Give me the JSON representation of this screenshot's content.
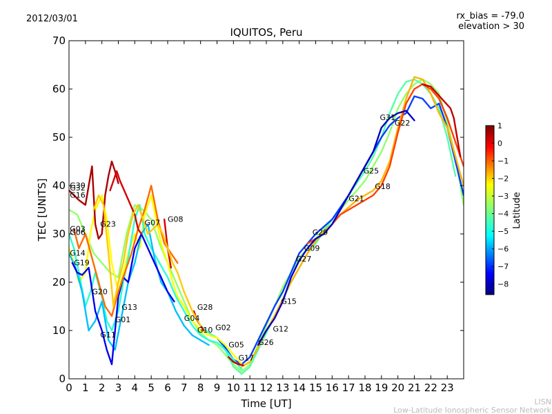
{
  "header": {
    "date": "2012/03/01",
    "rx_bias": "rx_bias = -79.0",
    "elevation": "elevation > 30"
  },
  "footer": {
    "org_short": "LISN",
    "org_full": "Low-Latitude Ionospheric Sensor Network"
  },
  "chart_data": {
    "type": "scatter",
    "title": "IQUITOS, Peru",
    "xlabel": "Time [UT]",
    "ylabel": "TEC [UNITS]",
    "xlim": [
      0,
      24
    ],
    "ylim": [
      0,
      70
    ],
    "xticks": [
      "0",
      "1",
      "2",
      "3",
      "4",
      "5",
      "6",
      "7",
      "8",
      "9",
      "10",
      "11",
      "12",
      "13",
      "14",
      "15",
      "16",
      "17",
      "18",
      "19",
      "20",
      "21",
      "22",
      "23"
    ],
    "yticks": [
      "0",
      "10",
      "20",
      "30",
      "40",
      "50",
      "60",
      "70"
    ],
    "colorbar": {
      "label": "Latitude",
      "min": -8.6,
      "max": 1.0,
      "ticks": [
        "1",
        "0",
        "−1",
        "−2",
        "−3",
        "−4",
        "−5",
        "−6",
        "−7",
        "−8"
      ],
      "colors": [
        "#00007f",
        "#0000ff",
        "#007fff",
        "#00ffff",
        "#7fff7f",
        "#ffff00",
        "#ff7f00",
        "#ff0000",
        "#7f0000"
      ]
    },
    "satellite_labels": [
      {
        "name": "G30",
        "x": 0.05,
        "y": 39.5
      },
      {
        "name": "G32",
        "x": 0.05,
        "y": 39.0
      },
      {
        "name": "G16",
        "x": 0.05,
        "y": 37.5
      },
      {
        "name": "G03",
        "x": 0.05,
        "y": 30.5
      },
      {
        "name": "G06",
        "x": 0.05,
        "y": 29.8
      },
      {
        "name": "G14",
        "x": 0.05,
        "y": 25.5
      },
      {
        "name": "G19",
        "x": 0.3,
        "y": 23.5
      },
      {
        "name": "G23",
        "x": 1.9,
        "y": 31.5
      },
      {
        "name": "G20",
        "x": 1.4,
        "y": 17.5
      },
      {
        "name": "G13",
        "x": 3.2,
        "y": 14.3
      },
      {
        "name": "G01",
        "x": 2.8,
        "y": 11.7
      },
      {
        "name": "G11",
        "x": 1.9,
        "y": 8.6
      },
      {
        "name": "G07",
        "x": 4.6,
        "y": 31.8
      },
      {
        "name": "G08",
        "x": 6.0,
        "y": 32.5
      },
      {
        "name": "G04",
        "x": 7.0,
        "y": 12.0
      },
      {
        "name": "G28",
        "x": 7.8,
        "y": 14.3
      },
      {
        "name": "G10",
        "x": 7.8,
        "y": 9.6
      },
      {
        "name": "G02",
        "x": 8.9,
        "y": 10.1
      },
      {
        "name": "G05",
        "x": 9.7,
        "y": 6.5
      },
      {
        "name": "G17",
        "x": 10.3,
        "y": 3.8
      },
      {
        "name": "G26",
        "x": 11.5,
        "y": 7.0
      },
      {
        "name": "G12",
        "x": 12.4,
        "y": 9.8
      },
      {
        "name": "G15",
        "x": 12.9,
        "y": 15.5
      },
      {
        "name": "G27",
        "x": 13.8,
        "y": 24.3
      },
      {
        "name": "G09",
        "x": 14.3,
        "y": 26.5
      },
      {
        "name": "G29",
        "x": 14.8,
        "y": 29.8
      },
      {
        "name": "G21",
        "x": 17.0,
        "y": 36.8
      },
      {
        "name": "G25",
        "x": 17.9,
        "y": 42.5
      },
      {
        "name": "G18",
        "x": 18.6,
        "y": 39.3
      },
      {
        "name": "G31",
        "x": 18.9,
        "y": 53.6
      },
      {
        "name": "G22",
        "x": 19.8,
        "y": 52.4
      }
    ],
    "series": [
      {
        "name": "day-green-1",
        "lat": -3.6,
        "x": [
          0,
          0.5,
          1,
          1.5,
          2,
          2.5,
          3,
          3.5,
          4,
          4.5,
          5,
          5.5,
          6,
          6.5,
          7,
          7.5,
          8,
          8.5,
          9,
          9.5,
          10,
          10.5,
          11,
          11.5,
          12,
          12.5,
          13,
          13.5,
          14,
          14.5,
          15,
          15.5,
          16,
          16.5,
          17,
          17.5,
          18,
          18.5,
          19,
          19.5,
          20,
          20.5,
          21,
          21.5,
          22,
          22.5,
          23,
          23.5,
          24
        ],
        "y": [
          35,
          34,
          30,
          26,
          24,
          22,
          21,
          30,
          36,
          35,
          33,
          28,
          24,
          20,
          16,
          12,
          9.5,
          8,
          7,
          5,
          3,
          1.5,
          3,
          7,
          11,
          15,
          19,
          22,
          25,
          27,
          29,
          31,
          33,
          35,
          37,
          39,
          41,
          44,
          47,
          51,
          56,
          59,
          61,
          62,
          61,
          59,
          53,
          46,
          36
        ]
      },
      {
        "name": "day-green-2",
        "lat": -4.2,
        "x": [
          8,
          8.5,
          9,
          9.5,
          10,
          10.5,
          11,
          11.5,
          12,
          12.5,
          13,
          13.5,
          14,
          14.5,
          15,
          15.5,
          16,
          16.5,
          17,
          17.5,
          18,
          18.5,
          19,
          19.5,
          20,
          20.5,
          21,
          21.5,
          22,
          22.5,
          23,
          23.5
        ],
        "y": [
          11,
          9.5,
          8.5,
          6,
          2.5,
          1,
          2.5,
          6,
          9.5,
          13,
          16.5,
          20,
          23,
          26,
          28,
          30.5,
          33,
          35.5,
          38,
          40.5,
          43,
          46,
          50,
          55,
          59,
          61.5,
          62,
          61,
          59,
          56,
          50,
          42
        ]
      },
      {
        "name": "day-cyan",
        "lat": -6.8,
        "x": [
          9,
          9.5,
          10,
          10.5,
          11,
          11.5,
          12,
          12.5,
          13,
          13.5,
          14,
          14.5,
          15,
          15.5,
          16,
          16.5,
          17,
          17.5,
          18,
          18.5,
          19,
          19.5,
          20,
          20.5,
          21,
          21.5,
          22,
          22.5,
          23,
          23.5,
          24
        ],
        "y": [
          8.5,
          6.5,
          4,
          3,
          4.5,
          8,
          11.5,
          15,
          18,
          22,
          26,
          28,
          30,
          31.5,
          33,
          35.5,
          38,
          41,
          44,
          47,
          50,
          52.5,
          54,
          55,
          58.5,
          58,
          56,
          57,
          52,
          45,
          38
        ]
      },
      {
        "name": "day-yellow",
        "lat": -1.9,
        "x": [
          10.5,
          11,
          11.5,
          12,
          12.5,
          13,
          13.5,
          14,
          14.5,
          15,
          15.5,
          16,
          16.5,
          17,
          17.5,
          18,
          18.5,
          19,
          19.5,
          20,
          20.5,
          21,
          21.5,
          22,
          22.5,
          23,
          23.5,
          24
        ],
        "y": [
          2.5,
          3.5,
          6.5,
          10,
          13,
          16.5,
          20,
          23,
          26,
          28.5,
          30.5,
          32,
          34,
          35.5,
          37,
          38,
          39,
          41,
          45,
          52,
          58,
          62.5,
          62,
          59,
          55,
          52,
          46,
          40
        ]
      },
      {
        "name": "day-orange",
        "lat": -0.8,
        "x": [
          14.5,
          15,
          15.5,
          16,
          16.5,
          17,
          17.5,
          18,
          18.5,
          19,
          19.5,
          20,
          20.5,
          21,
          21.5,
          22,
          22.5,
          23,
          23.5,
          24
        ],
        "y": [
          28,
          29,
          30,
          32,
          34,
          35,
          36,
          37,
          38,
          40,
          44,
          51,
          57,
          60,
          61,
          60,
          58,
          54,
          49,
          44
        ]
      },
      {
        "name": "day-blue",
        "lat": -8.0,
        "x": [
          11.5,
          12,
          12.5,
          13,
          13.5,
          14,
          14.5,
          15,
          15.5,
          16,
          16.5,
          17,
          17.5,
          18,
          18.5,
          19,
          19.5,
          20,
          20.5,
          21
        ],
        "y": [
          7,
          10,
          12.5,
          16,
          21,
          24.5,
          27,
          29,
          30,
          32,
          35,
          38,
          41,
          44,
          47,
          52,
          54,
          55,
          55.5,
          53.5
        ]
      },
      {
        "name": "night-lime",
        "lat": -2.6,
        "x": [
          0,
          0.3,
          0.6,
          1,
          1.3,
          1.6,
          2,
          2.3,
          2.6,
          3,
          3.3,
          3.6,
          4,
          4.3,
          4.6,
          5,
          5.3,
          5.6,
          6,
          6.3,
          6.6,
          7,
          7.5,
          8,
          8.5,
          9,
          9.5,
          10,
          10.5
        ],
        "y": [
          27,
          24,
          20,
          22,
          30,
          35,
          38,
          33,
          24,
          18,
          22,
          26,
          30,
          27,
          34,
          38,
          33,
          28,
          24,
          20,
          17,
          15,
          12,
          10,
          9,
          8.5,
          7,
          5,
          3
        ]
      },
      {
        "name": "night-green-3",
        "lat": -4.6,
        "x": [
          0,
          0.3,
          0.6,
          1,
          1.3,
          1.6,
          2,
          2.3,
          2.6,
          3,
          3.3,
          3.6,
          4,
          4.3,
          4.6,
          5,
          5.5,
          6,
          6.5,
          7,
          7.5,
          8,
          8.5,
          9,
          9.5,
          10,
          10.5
        ],
        "y": [
          30,
          27,
          22,
          15,
          18,
          22,
          17,
          12,
          10,
          14,
          20,
          25,
          33,
          36,
          30,
          27,
          24,
          21,
          17,
          14,
          11,
          9,
          8,
          7.5,
          6,
          4,
          2
        ]
      },
      {
        "name": "night-teal",
        "lat": -5.6,
        "x": [
          0,
          0.4,
          0.8,
          1.2,
          1.6,
          2,
          2.4,
          2.8,
          3.2,
          3.6,
          4,
          4.4,
          4.8,
          5.2,
          5.6,
          6,
          6.5,
          7,
          7.5,
          8,
          8.5
        ],
        "y": [
          26,
          23,
          18,
          10,
          12,
          16,
          8,
          6,
          13,
          20,
          24,
          30,
          32,
          25,
          20,
          18,
          14,
          11,
          9,
          8,
          7
        ]
      },
      {
        "name": "night-blue",
        "lat": -7.6,
        "x": [
          0.2,
          0.5,
          0.8,
          1.2,
          1.6,
          2,
          2.3,
          2.6,
          3,
          3.3,
          3.6,
          4,
          4.4,
          4.8,
          5.2,
          5.6,
          6,
          6.4
        ],
        "y": [
          24,
          22,
          21.5,
          23,
          14,
          10,
          6,
          3,
          17,
          21,
          20,
          27,
          30,
          27,
          24,
          21,
          18,
          16
        ]
      },
      {
        "name": "night-orange",
        "lat": -1.2,
        "x": [
          0.3,
          0.6,
          1,
          1.4,
          1.8,
          2.2,
          2.6,
          3,
          3.4,
          3.8,
          4.2,
          4.6,
          5,
          5.4,
          5.8,
          6.2,
          6.6
        ],
        "y": [
          31,
          27,
          30,
          25,
          20,
          15,
          13,
          18,
          22,
          26,
          31,
          35,
          40,
          33,
          28,
          26,
          24
        ]
      },
      {
        "name": "night-red-1",
        "lat": 0.6,
        "x": [
          0,
          0.3,
          0.6,
          1,
          1.2,
          1.4,
          1.6,
          1.8,
          2,
          2.2,
          2.4,
          2.6,
          2.8,
          3
        ],
        "y": [
          39,
          38,
          37,
          36,
          40,
          44,
          32,
          29,
          30,
          38,
          42,
          45,
          43,
          40.5
        ]
      },
      {
        "name": "night-red-2",
        "lat": 0.2,
        "x": [
          2.5,
          2.7,
          2.9,
          3.1,
          4,
          4.2,
          4.4,
          5.8,
          6,
          6.2,
          7.6,
          7.8,
          8,
          8.2
        ],
        "y": [
          39,
          41,
          43,
          41,
          34,
          31,
          30,
          33,
          27,
          23,
          14,
          12,
          11,
          10
        ]
      },
      {
        "name": "night-yellow",
        "lat": -2.1,
        "x": [
          1.5,
          1.8,
          2.1,
          2.4,
          2.7,
          3,
          3.3,
          3.6,
          3.9,
          4.2,
          4.5,
          4.8,
          5.1,
          5.4,
          5.7,
          6,
          6.3,
          6.6,
          7,
          7.5,
          8
        ],
        "y": [
          35,
          38,
          36,
          26,
          15,
          20,
          24,
          30,
          34,
          36,
          33,
          30,
          31,
          32,
          30,
          27,
          24,
          22,
          18,
          14,
          11
        ]
      },
      {
        "name": "night-red-3",
        "lat": 0.4,
        "x": [
          9.7,
          10,
          10.3,
          10.6,
          21.5,
          22,
          23.2,
          23.4,
          23.8
        ],
        "y": [
          4.5,
          3.5,
          3,
          2.8,
          61,
          60.5,
          56,
          54,
          46
        ]
      }
    ]
  }
}
